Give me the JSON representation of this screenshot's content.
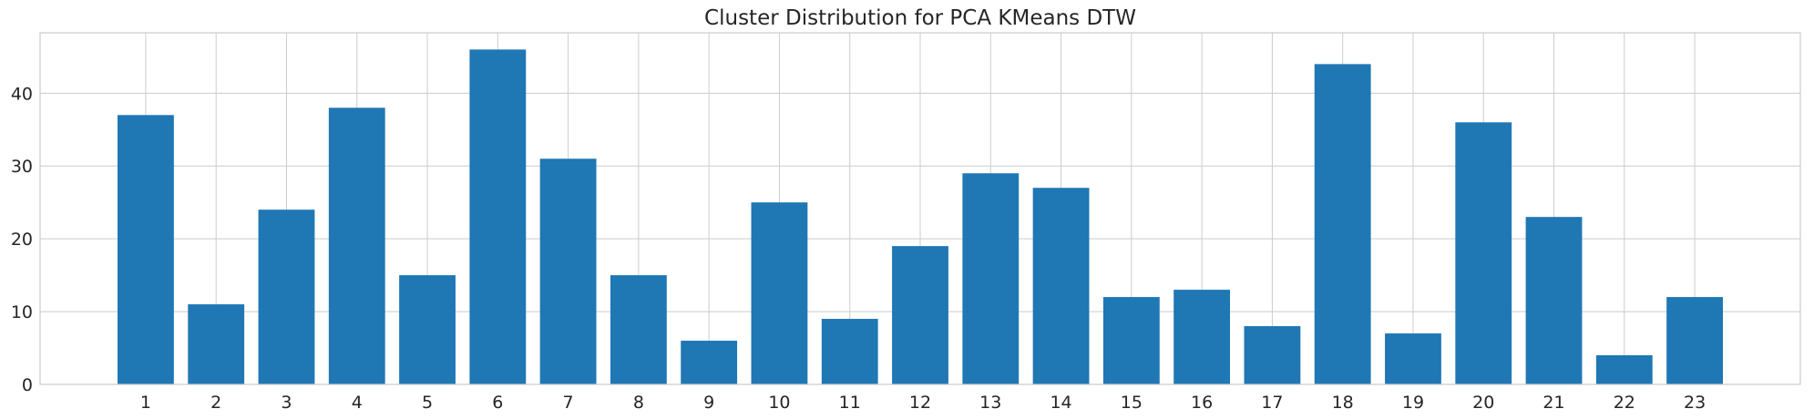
{
  "chart_data": {
    "type": "bar",
    "title": "Cluster Distribution for PCA KMeans DTW",
    "xlabel": "",
    "ylabel": "",
    "categories": [
      "1",
      "2",
      "3",
      "4",
      "5",
      "6",
      "7",
      "8",
      "9",
      "10",
      "11",
      "12",
      "13",
      "14",
      "15",
      "16",
      "17",
      "18",
      "19",
      "20",
      "21",
      "22",
      "23"
    ],
    "values": [
      37,
      11,
      24,
      38,
      15,
      46,
      31,
      15,
      6,
      25,
      9,
      19,
      29,
      27,
      12,
      13,
      8,
      44,
      7,
      36,
      23,
      4,
      12
    ],
    "ylim": [
      0,
      48.3
    ],
    "xlim": [
      -0.5,
      24.5
    ],
    "yticks": [
      0,
      10,
      20,
      30,
      40
    ],
    "grid": true,
    "legend": "none",
    "bar_color": "#1f77b4",
    "grid_color": "#cccccc",
    "axes_edge_color": "#cccccc",
    "background": "#ffffff"
  }
}
